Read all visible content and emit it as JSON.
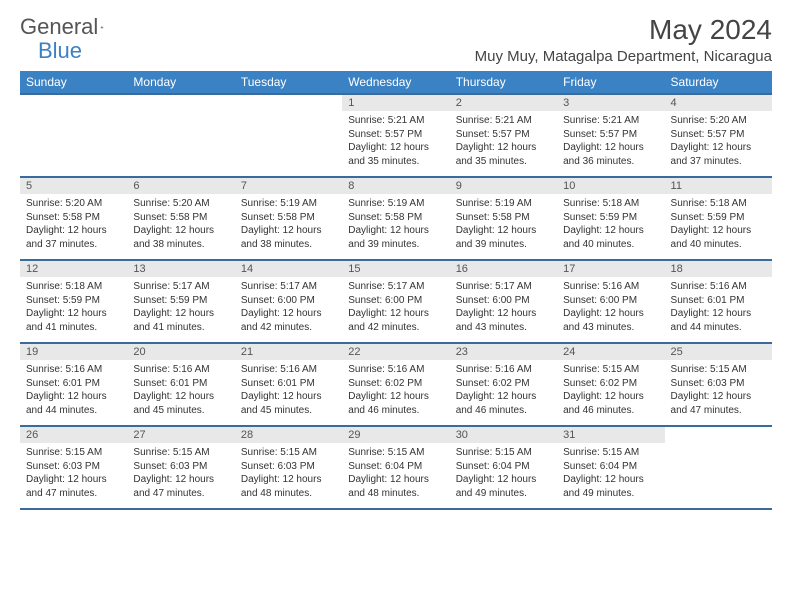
{
  "brand": {
    "part1": "General",
    "part2": "Blue"
  },
  "title": "May 2024",
  "location": "Muy Muy, Matagalpa Department, Nicaragua",
  "colors": {
    "header_bg": "#3b82c4",
    "border": "#3b6a9c",
    "daynum_bg": "#e8e8e8",
    "text": "#333"
  },
  "dayHeaders": [
    "Sunday",
    "Monday",
    "Tuesday",
    "Wednesday",
    "Thursday",
    "Friday",
    "Saturday"
  ],
  "weeks": [
    [
      {
        "empty": true
      },
      {
        "empty": true
      },
      {
        "empty": true
      },
      {
        "num": "1",
        "sunrise": "5:21 AM",
        "sunset": "5:57 PM",
        "daylight": "12 hours and 35 minutes."
      },
      {
        "num": "2",
        "sunrise": "5:21 AM",
        "sunset": "5:57 PM",
        "daylight": "12 hours and 35 minutes."
      },
      {
        "num": "3",
        "sunrise": "5:21 AM",
        "sunset": "5:57 PM",
        "daylight": "12 hours and 36 minutes."
      },
      {
        "num": "4",
        "sunrise": "5:20 AM",
        "sunset": "5:57 PM",
        "daylight": "12 hours and 37 minutes."
      }
    ],
    [
      {
        "num": "5",
        "sunrise": "5:20 AM",
        "sunset": "5:58 PM",
        "daylight": "12 hours and 37 minutes."
      },
      {
        "num": "6",
        "sunrise": "5:20 AM",
        "sunset": "5:58 PM",
        "daylight": "12 hours and 38 minutes."
      },
      {
        "num": "7",
        "sunrise": "5:19 AM",
        "sunset": "5:58 PM",
        "daylight": "12 hours and 38 minutes."
      },
      {
        "num": "8",
        "sunrise": "5:19 AM",
        "sunset": "5:58 PM",
        "daylight": "12 hours and 39 minutes."
      },
      {
        "num": "9",
        "sunrise": "5:19 AM",
        "sunset": "5:58 PM",
        "daylight": "12 hours and 39 minutes."
      },
      {
        "num": "10",
        "sunrise": "5:18 AM",
        "sunset": "5:59 PM",
        "daylight": "12 hours and 40 minutes."
      },
      {
        "num": "11",
        "sunrise": "5:18 AM",
        "sunset": "5:59 PM",
        "daylight": "12 hours and 40 minutes."
      }
    ],
    [
      {
        "num": "12",
        "sunrise": "5:18 AM",
        "sunset": "5:59 PM",
        "daylight": "12 hours and 41 minutes."
      },
      {
        "num": "13",
        "sunrise": "5:17 AM",
        "sunset": "5:59 PM",
        "daylight": "12 hours and 41 minutes."
      },
      {
        "num": "14",
        "sunrise": "5:17 AM",
        "sunset": "6:00 PM",
        "daylight": "12 hours and 42 minutes."
      },
      {
        "num": "15",
        "sunrise": "5:17 AM",
        "sunset": "6:00 PM",
        "daylight": "12 hours and 42 minutes."
      },
      {
        "num": "16",
        "sunrise": "5:17 AM",
        "sunset": "6:00 PM",
        "daylight": "12 hours and 43 minutes."
      },
      {
        "num": "17",
        "sunrise": "5:16 AM",
        "sunset": "6:00 PM",
        "daylight": "12 hours and 43 minutes."
      },
      {
        "num": "18",
        "sunrise": "5:16 AM",
        "sunset": "6:01 PM",
        "daylight": "12 hours and 44 minutes."
      }
    ],
    [
      {
        "num": "19",
        "sunrise": "5:16 AM",
        "sunset": "6:01 PM",
        "daylight": "12 hours and 44 minutes."
      },
      {
        "num": "20",
        "sunrise": "5:16 AM",
        "sunset": "6:01 PM",
        "daylight": "12 hours and 45 minutes."
      },
      {
        "num": "21",
        "sunrise": "5:16 AM",
        "sunset": "6:01 PM",
        "daylight": "12 hours and 45 minutes."
      },
      {
        "num": "22",
        "sunrise": "5:16 AM",
        "sunset": "6:02 PM",
        "daylight": "12 hours and 46 minutes."
      },
      {
        "num": "23",
        "sunrise": "5:16 AM",
        "sunset": "6:02 PM",
        "daylight": "12 hours and 46 minutes."
      },
      {
        "num": "24",
        "sunrise": "5:15 AM",
        "sunset": "6:02 PM",
        "daylight": "12 hours and 46 minutes."
      },
      {
        "num": "25",
        "sunrise": "5:15 AM",
        "sunset": "6:03 PM",
        "daylight": "12 hours and 47 minutes."
      }
    ],
    [
      {
        "num": "26",
        "sunrise": "5:15 AM",
        "sunset": "6:03 PM",
        "daylight": "12 hours and 47 minutes."
      },
      {
        "num": "27",
        "sunrise": "5:15 AM",
        "sunset": "6:03 PM",
        "daylight": "12 hours and 47 minutes."
      },
      {
        "num": "28",
        "sunrise": "5:15 AM",
        "sunset": "6:03 PM",
        "daylight": "12 hours and 48 minutes."
      },
      {
        "num": "29",
        "sunrise": "5:15 AM",
        "sunset": "6:04 PM",
        "daylight": "12 hours and 48 minutes."
      },
      {
        "num": "30",
        "sunrise": "5:15 AM",
        "sunset": "6:04 PM",
        "daylight": "12 hours and 49 minutes."
      },
      {
        "num": "31",
        "sunrise": "5:15 AM",
        "sunset": "6:04 PM",
        "daylight": "12 hours and 49 minutes."
      },
      {
        "empty": true
      }
    ]
  ]
}
